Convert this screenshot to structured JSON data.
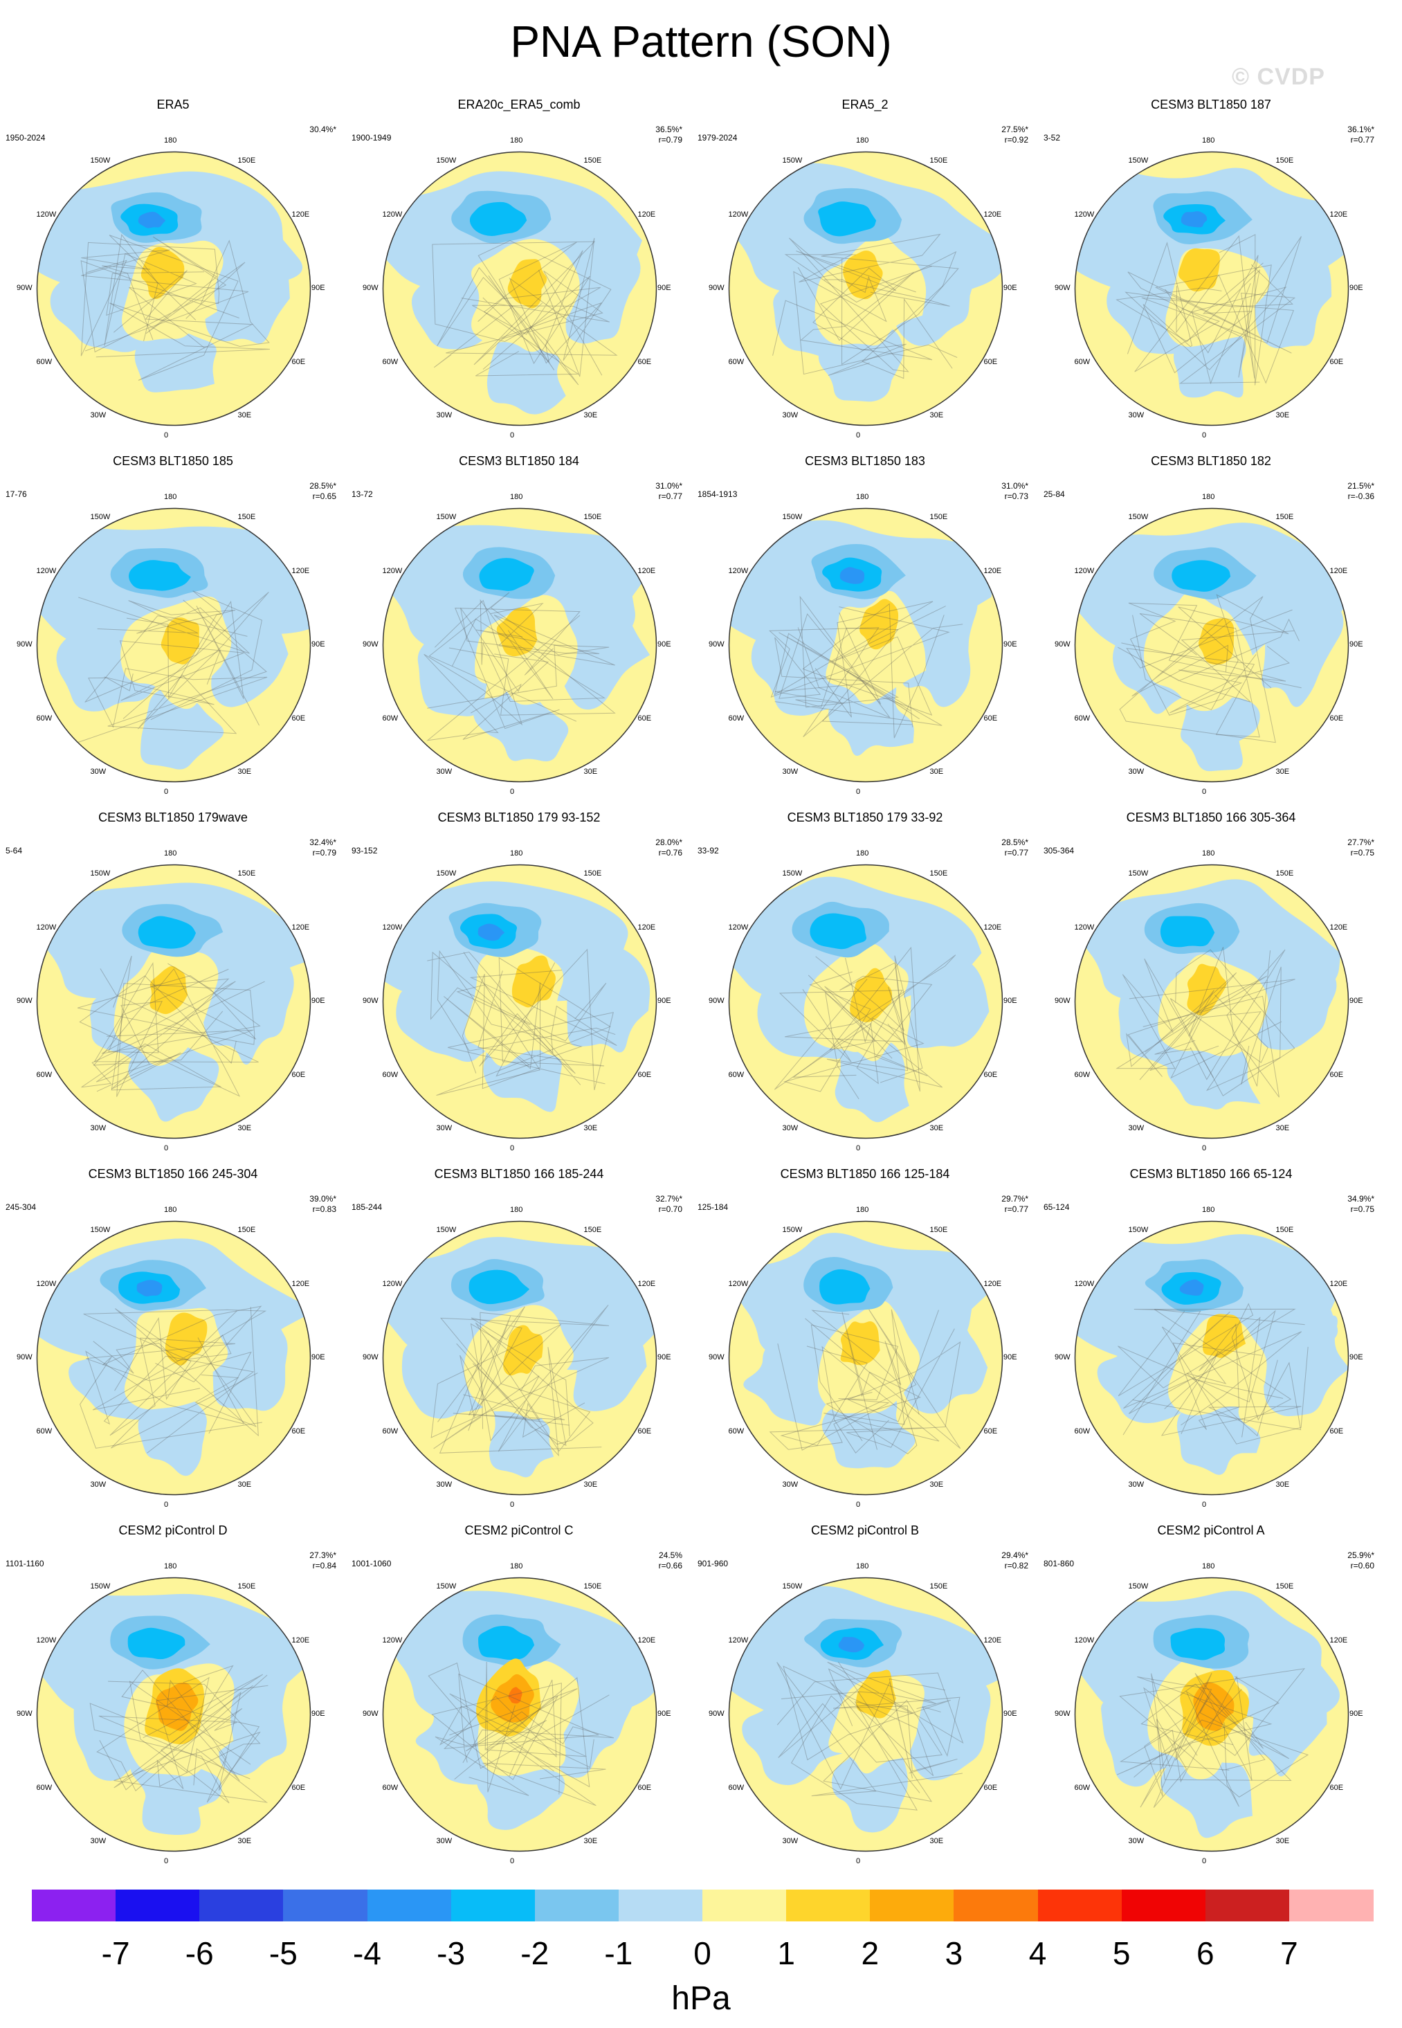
{
  "title": "PNA Pattern (SON)",
  "watermark": "© CVDP",
  "lon_labels": [
    "180",
    "150E",
    "120E",
    "90E",
    "60E",
    "30E",
    "0",
    "30W",
    "60W",
    "90W",
    "120W",
    "150W"
  ],
  "panels": [
    {
      "title": "ERA5",
      "years": "1950-2024",
      "pct": "30.4%*",
      "r": "",
      "neg": [
        [
          -1,
          -2
        ],
        [
          -2,
          -3.5
        ]
      ],
      "pos": [
        [
          1,
          1.8
        ]
      ],
      "variant": 0
    },
    {
      "title": "ERA20c_ERA5_comb",
      "years": "1900-1949",
      "pct": "36.5%*",
      "r": "r=0.79",
      "variant": 1
    },
    {
      "title": "ERA5_2",
      "years": "1979-2024",
      "pct": "27.5%*",
      "r": "r=0.92",
      "variant": 2
    },
    {
      "title": "CESM3 BLT1850 187",
      "years": "3-52",
      "pct": "36.1%*",
      "r": "r=0.77",
      "variant": 3
    },
    {
      "title": "CESM3 BLT1850 185",
      "years": "17-76",
      "pct": "28.5%*",
      "r": "r=0.65",
      "variant": 4
    },
    {
      "title": "CESM3 BLT1850 184",
      "years": "13-72",
      "pct": "31.0%*",
      "r": "r=0.77",
      "variant": 5
    },
    {
      "title": "CESM3 BLT1850 183",
      "years": "1854-1913",
      "pct": "31.0%*",
      "r": "r=0.73",
      "variant": 6
    },
    {
      "title": "CESM3 BLT1850 182",
      "years": "25-84",
      "pct": "21.5%*",
      "r": "r=-0.36",
      "variant": 7
    },
    {
      "title": "CESM3 BLT1850 179wave",
      "years": "5-64",
      "pct": "32.4%*",
      "r": "r=0.79",
      "variant": 8
    },
    {
      "title": "CESM3 BLT1850 179 93-152",
      "years": "93-152",
      "pct": "28.0%*",
      "r": "r=0.76",
      "variant": 9
    },
    {
      "title": "CESM3 BLT1850 179 33-92",
      "years": "33-92",
      "pct": "28.5%*",
      "r": "r=0.77",
      "variant": 10
    },
    {
      "title": "CESM3 BLT1850 166 305-364",
      "years": "305-364",
      "pct": "27.7%*",
      "r": "r=0.75",
      "variant": 11
    },
    {
      "title": "CESM3 BLT1850 166 245-304",
      "years": "245-304",
      "pct": "39.0%*",
      "r": "r=0.83",
      "variant": 12
    },
    {
      "title": "CESM3 BLT1850 166 185-244",
      "years": "185-244",
      "pct": "32.7%*",
      "r": "r=0.70",
      "variant": 13
    },
    {
      "title": "CESM3 BLT1850 166 125-184",
      "years": "125-184",
      "pct": "29.7%*",
      "r": "r=0.77",
      "variant": 14
    },
    {
      "title": "CESM3 BLT1850 166 65-124",
      "years": "65-124",
      "pct": "34.9%*",
      "r": "r=0.75",
      "variant": 15
    },
    {
      "title": "CESM2 piControl D",
      "years": "1101-1160",
      "pct": "27.3%*",
      "r": "r=0.84",
      "variant": 16
    },
    {
      "title": "CESM2 piControl C",
      "years": "1001-1060",
      "pct": "24.5%",
      "r": "r=0.66",
      "variant": 17
    },
    {
      "title": "CESM2 piControl B",
      "years": "901-960",
      "pct": "29.4%*",
      "r": "r=0.82",
      "variant": 18
    },
    {
      "title": "CESM2 piControl A",
      "years": "801-860",
      "pct": "25.9%*",
      "r": "r=0.60",
      "variant": 19
    }
  ],
  "colorbar": {
    "units": "hPa",
    "labels": [
      "-7",
      "-6",
      "-5",
      "-4",
      "-3",
      "-2",
      "-1",
      "0",
      "1",
      "2",
      "3",
      "4",
      "5",
      "6",
      "7"
    ],
    "colors": [
      "#8c21f0",
      "#1a10f0",
      "#2a40e0",
      "#3a70e8",
      "#2a96f5",
      "#08bcf8",
      "#7ac6ef",
      "#b6dcf4",
      "#fdf59a",
      "#fed52c",
      "#fdab0c",
      "#fc7a0c",
      "#fd3408",
      "#f00404",
      "#cc2020",
      "#ffb2b2"
    ]
  }
}
